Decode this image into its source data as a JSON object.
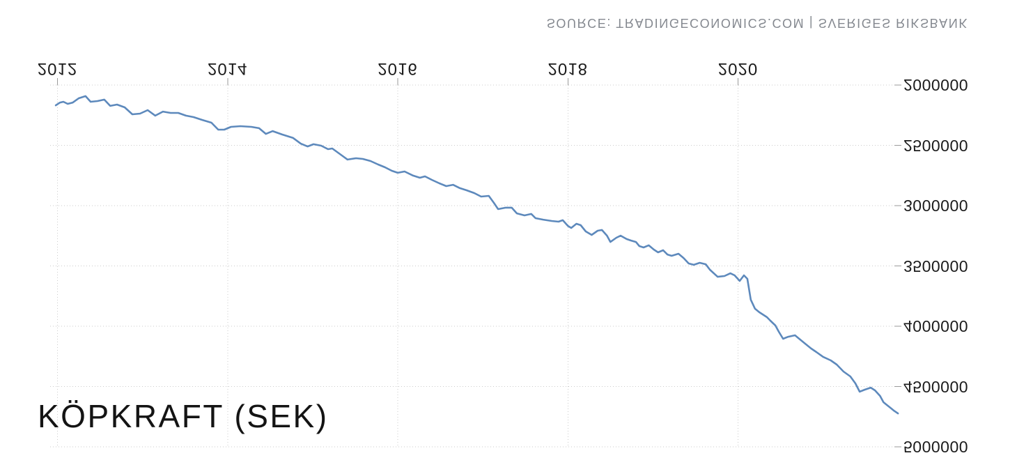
{
  "title": "KÖPKRAFT (SEK)",
  "source_text": "SOURCE: TRADINGECONOMICS.COM | SVERIGES RIKSBANK",
  "colors": {
    "background": "#ffffff",
    "line": "#5d89bc",
    "grid": "#cbcbcb",
    "tick": "#9a9a9a",
    "axis_label": "#1b1b1b",
    "source": "#84888f",
    "title": "#141414"
  },
  "chart_data": {
    "type": "line",
    "title": "KÖPKRAFT (SEK)",
    "source": "SOURCE: TRADINGECONOMICS.COM | SVERIGES RIKSBANK",
    "legend": "none",
    "grid": "dotted",
    "text_mirrored_vertically": true,
    "y_axis_increases_downward": true,
    "x_tick_labels": [
      "2012",
      "2014",
      "2016",
      "2018",
      "2020"
    ],
    "x_tick_years": [
      2012,
      2014,
      2016,
      2018,
      2020
    ],
    "y_tick_labels": [
      "2000000",
      "2500000",
      "3000000",
      "3500000",
      "4000000",
      "4500000",
      "5000000"
    ],
    "y_tick_values": [
      2000000,
      2500000,
      3000000,
      3500000,
      4000000,
      4500000,
      5000000
    ],
    "x_range": [
      2011.98,
      2021.9
    ],
    "y_range": [
      2000000,
      5000000
    ],
    "series": [
      {
        "name": "KÖPKRAFT (SEK)",
        "points": [
          [
            2011.98,
            2168000
          ],
          [
            2012.03,
            2145000
          ],
          [
            2012.07,
            2139000
          ],
          [
            2012.12,
            2156000
          ],
          [
            2012.18,
            2145000
          ],
          [
            2012.25,
            2110000
          ],
          [
            2012.33,
            2092000
          ],
          [
            2012.39,
            2139000
          ],
          [
            2012.47,
            2133000
          ],
          [
            2012.55,
            2121000
          ],
          [
            2012.62,
            2173000
          ],
          [
            2012.7,
            2162000
          ],
          [
            2012.79,
            2185000
          ],
          [
            2012.88,
            2243000
          ],
          [
            2012.97,
            2237000
          ],
          [
            2013.06,
            2208000
          ],
          [
            2013.15,
            2254000
          ],
          [
            2013.24,
            2220000
          ],
          [
            2013.33,
            2231000
          ],
          [
            2013.42,
            2231000
          ],
          [
            2013.51,
            2254000
          ],
          [
            2013.6,
            2266000
          ],
          [
            2013.7,
            2289000
          ],
          [
            2013.81,
            2312000
          ],
          [
            2013.89,
            2370000
          ],
          [
            2013.96,
            2370000
          ],
          [
            2014.04,
            2347000
          ],
          [
            2014.15,
            2341000
          ],
          [
            2014.28,
            2347000
          ],
          [
            2014.37,
            2358000
          ],
          [
            2014.45,
            2405000
          ],
          [
            2014.53,
            2382000
          ],
          [
            2014.64,
            2410000
          ],
          [
            2014.77,
            2439000
          ],
          [
            2014.86,
            2486000
          ],
          [
            2014.94,
            2509000
          ],
          [
            2015.01,
            2491000
          ],
          [
            2015.1,
            2503000
          ],
          [
            2015.18,
            2532000
          ],
          [
            2015.23,
            2526000
          ],
          [
            2015.32,
            2572000
          ],
          [
            2015.41,
            2618000
          ],
          [
            2015.51,
            2607000
          ],
          [
            2015.59,
            2613000
          ],
          [
            2015.68,
            2630000
          ],
          [
            2015.77,
            2659000
          ],
          [
            2015.85,
            2682000
          ],
          [
            2015.93,
            2711000
          ],
          [
            2016.0,
            2728000
          ],
          [
            2016.08,
            2717000
          ],
          [
            2016.18,
            2751000
          ],
          [
            2016.26,
            2769000
          ],
          [
            2016.32,
            2757000
          ],
          [
            2016.4,
            2786000
          ],
          [
            2016.49,
            2815000
          ],
          [
            2016.57,
            2838000
          ],
          [
            2016.65,
            2827000
          ],
          [
            2016.73,
            2855000
          ],
          [
            2016.81,
            2873000
          ],
          [
            2016.9,
            2896000
          ],
          [
            2016.98,
            2925000
          ],
          [
            2017.07,
            2919000
          ],
          [
            2017.13,
            2977000
          ],
          [
            2017.18,
            3029000
          ],
          [
            2017.27,
            3017000
          ],
          [
            2017.34,
            3017000
          ],
          [
            2017.4,
            3064000
          ],
          [
            2017.49,
            3081000
          ],
          [
            2017.57,
            3069000
          ],
          [
            2017.62,
            3104000
          ],
          [
            2017.71,
            3116000
          ],
          [
            2017.81,
            3127000
          ],
          [
            2017.89,
            3133000
          ],
          [
            2017.94,
            3121000
          ],
          [
            2018.0,
            3168000
          ],
          [
            2018.04,
            3185000
          ],
          [
            2018.1,
            3150000
          ],
          [
            2018.15,
            3162000
          ],
          [
            2018.21,
            3214000
          ],
          [
            2018.28,
            3243000
          ],
          [
            2018.35,
            3208000
          ],
          [
            2018.4,
            3202000
          ],
          [
            2018.46,
            3249000
          ],
          [
            2018.5,
            3301000
          ],
          [
            2018.57,
            3266000
          ],
          [
            2018.62,
            3249000
          ],
          [
            2018.69,
            3277000
          ],
          [
            2018.74,
            3289000
          ],
          [
            2018.8,
            3301000
          ],
          [
            2018.84,
            3335000
          ],
          [
            2018.89,
            3347000
          ],
          [
            2018.95,
            3329000
          ],
          [
            2019.01,
            3364000
          ],
          [
            2019.06,
            3387000
          ],
          [
            2019.12,
            3370000
          ],
          [
            2019.17,
            3405000
          ],
          [
            2019.22,
            3416000
          ],
          [
            2019.3,
            3399000
          ],
          [
            2019.36,
            3434000
          ],
          [
            2019.42,
            3480000
          ],
          [
            2019.48,
            3491000
          ],
          [
            2019.55,
            3474000
          ],
          [
            2019.62,
            3486000
          ],
          [
            2019.67,
            3532000
          ],
          [
            2019.76,
            3590000
          ],
          [
            2019.84,
            3584000
          ],
          [
            2019.91,
            3561000
          ],
          [
            2019.96,
            3578000
          ],
          [
            2020.02,
            3624000
          ],
          [
            2020.07,
            3578000
          ],
          [
            2020.11,
            3607000
          ],
          [
            2020.15,
            3780000
          ],
          [
            2020.2,
            3855000
          ],
          [
            2020.25,
            3884000
          ],
          [
            2020.34,
            3925000
          ],
          [
            2020.38,
            3954000
          ],
          [
            2020.44,
            3994000
          ],
          [
            2020.48,
            4046000
          ],
          [
            2020.53,
            4104000
          ],
          [
            2020.59,
            4087000
          ],
          [
            2020.67,
            4075000
          ],
          [
            2020.74,
            4116000
          ],
          [
            2020.79,
            4145000
          ],
          [
            2020.86,
            4185000
          ],
          [
            2020.92,
            4214000
          ],
          [
            2021.0,
            4254000
          ],
          [
            2021.09,
            4283000
          ],
          [
            2021.16,
            4318000
          ],
          [
            2021.24,
            4376000
          ],
          [
            2021.32,
            4416000
          ],
          [
            2021.38,
            4474000
          ],
          [
            2021.43,
            4543000
          ],
          [
            2021.49,
            4526000
          ],
          [
            2021.56,
            4509000
          ],
          [
            2021.61,
            4532000
          ],
          [
            2021.67,
            4578000
          ],
          [
            2021.71,
            4630000
          ],
          [
            2021.75,
            4653000
          ],
          [
            2021.79,
            4676000
          ],
          [
            2021.83,
            4699000
          ],
          [
            2021.88,
            4723000
          ]
        ]
      }
    ]
  }
}
